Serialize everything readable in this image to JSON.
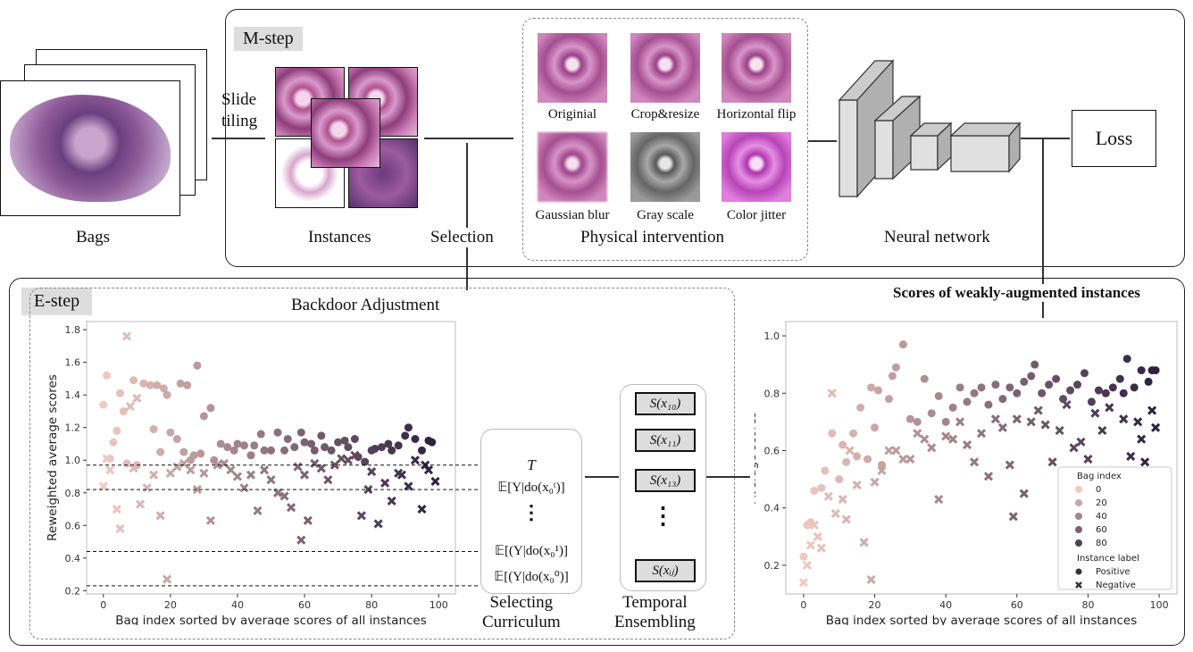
{
  "labels": {
    "bags": "Bags",
    "slide_tiling": "Slide\ntiling",
    "instances": "Instances",
    "selection": "Selection",
    "physical_intervention": "Physical intervention",
    "neural_network": "Neural network",
    "loss": "Loss",
    "m_step": "M-step",
    "e_step": "E-step",
    "backdoor": "Backdoor Adjustment",
    "scores_weak": "Scores of weakly-augmented instances",
    "selecting_curriculum": "Selecting\nCurriculum",
    "temporal_ensembling": "Temporal\nEnsembling"
  },
  "augmentations": [
    "Originial",
    "Crop&resize",
    "Horizontal flip",
    "Gaussian blur",
    "Gray scale",
    "Color jitter"
  ],
  "curriculum": {
    "t": "T",
    "e_t": "𝔼[Y|do(x₀ᵗ)]",
    "dots": "⋮",
    "e_1": "𝔼[(Y|do(x₀¹)]",
    "e_0": "𝔼[(Y|do(x₀⁰)]"
  },
  "ensemble": [
    "S(x₁₀)",
    "S(x₁₁)",
    "S(x₁₃)",
    "⋮",
    "S(xᵢⱼ)"
  ],
  "colors": {
    "bag_low": "#f0c9c0",
    "bag_high": "#2d1e3e"
  },
  "chart_data": [
    {
      "type": "scatter",
      "xlabel": "Bag index sorted by average scores of all instances",
      "ylabel": "Reweighted average scores",
      "xlim": [
        -5,
        105
      ],
      "ylim": [
        0.18,
        1.85
      ],
      "xticks": [
        0,
        20,
        40,
        60,
        80,
        100
      ],
      "yticks": [
        0.2,
        0.4,
        0.6,
        0.8,
        1.0,
        1.2,
        1.4,
        1.6,
        1.8
      ],
      "thresholds": [
        0.97,
        0.82,
        0.44,
        0.23
      ],
      "series": [
        {
          "name": "Positive",
          "marker": "circle",
          "points": [
            [
              0,
              1.34
            ],
            [
              1,
              1.52
            ],
            [
              2,
              1.01
            ],
            [
              3,
              1.11
            ],
            [
              4,
              1.18
            ],
            [
              5,
              1.41
            ],
            [
              6,
              1.3
            ],
            [
              7,
              0.98
            ],
            [
              9,
              1.49
            ],
            [
              10,
              0.97
            ],
            [
              12,
              1.47
            ],
            [
              14,
              1.46
            ],
            [
              15,
              1.19
            ],
            [
              16,
              1.46
            ],
            [
              17,
              1.05
            ],
            [
              18,
              1.44
            ],
            [
              19,
              1.4
            ],
            [
              20,
              1.17
            ],
            [
              22,
              1.13
            ],
            [
              23,
              1.47
            ],
            [
              24,
              1.05
            ],
            [
              25,
              1.46
            ],
            [
              26,
              1.0
            ],
            [
              27,
              1.03
            ],
            [
              28,
              1.58
            ],
            [
              29,
              1.04
            ],
            [
              30,
              1.27
            ],
            [
              32,
              1.32
            ],
            [
              33,
              1.0
            ],
            [
              35,
              1.1
            ],
            [
              37,
              1.08
            ],
            [
              39,
              1.06
            ],
            [
              40,
              1.1
            ],
            [
              42,
              1.09
            ],
            [
              44,
              1.03
            ],
            [
              45,
              1.09
            ],
            [
              47,
              1.16
            ],
            [
              48,
              1.06
            ],
            [
              50,
              1.06
            ],
            [
              52,
              1.17
            ],
            [
              54,
              1.06
            ],
            [
              55,
              1.13
            ],
            [
              57,
              1.08
            ],
            [
              59,
              1.17
            ],
            [
              60,
              1.11
            ],
            [
              62,
              1.1
            ],
            [
              63,
              1.06
            ],
            [
              65,
              1.15
            ],
            [
              66,
              1.08
            ],
            [
              68,
              1.06
            ],
            [
              70,
              1.11
            ],
            [
              72,
              1.12
            ],
            [
              73,
              1.08
            ],
            [
              75,
              1.13
            ],
            [
              76,
              1.02
            ],
            [
              78,
              0.99
            ],
            [
              80,
              1.06
            ],
            [
              81,
              1.07
            ],
            [
              83,
              1.08
            ],
            [
              85,
              1.1
            ],
            [
              86,
              1.06
            ],
            [
              88,
              1.09
            ],
            [
              90,
              1.15
            ],
            [
              91,
              1.2
            ],
            [
              93,
              1.13
            ],
            [
              95,
              1.06
            ],
            [
              97,
              1.12
            ],
            [
              98,
              1.11
            ]
          ]
        },
        {
          "name": "Negative",
          "marker": "x",
          "points": [
            [
              0,
              0.84
            ],
            [
              1,
              1.01
            ],
            [
              2,
              0.94
            ],
            [
              4,
              0.7
            ],
            [
              5,
              0.58
            ],
            [
              7,
              1.76
            ],
            [
              8,
              1.33
            ],
            [
              9,
              0.95
            ],
            [
              10,
              1.38
            ],
            [
              11,
              0.73
            ],
            [
              13,
              0.83
            ],
            [
              15,
              0.91
            ],
            [
              17,
              0.66
            ],
            [
              19,
              0.27
            ],
            [
              20,
              0.92
            ],
            [
              22,
              0.96
            ],
            [
              24,
              0.98
            ],
            [
              26,
              0.94
            ],
            [
              28,
              0.82
            ],
            [
              30,
              0.92
            ],
            [
              32,
              0.63
            ],
            [
              34,
              0.97
            ],
            [
              36,
              0.98
            ],
            [
              38,
              0.94
            ],
            [
              40,
              0.9
            ],
            [
              42,
              0.83
            ],
            [
              44,
              0.91
            ],
            [
              46,
              0.69
            ],
            [
              48,
              0.94
            ],
            [
              50,
              0.88
            ],
            [
              52,
              0.8
            ],
            [
              54,
              0.78
            ],
            [
              56,
              0.71
            ],
            [
              58,
              0.96
            ],
            [
              59,
              0.51
            ],
            [
              60,
              0.91
            ],
            [
              61,
              0.63
            ],
            [
              63,
              0.98
            ],
            [
              65,
              0.95
            ],
            [
              67,
              0.88
            ],
            [
              69,
              0.97
            ],
            [
              71,
              1.01
            ],
            [
              73,
              1.0
            ],
            [
              75,
              1.03
            ],
            [
              77,
              0.66
            ],
            [
              79,
              0.82
            ],
            [
              80,
              0.93
            ],
            [
              82,
              0.61
            ],
            [
              84,
              0.86
            ],
            [
              86,
              0.75
            ],
            [
              88,
              0.92
            ],
            [
              89,
              0.91
            ],
            [
              91,
              0.84
            ],
            [
              93,
              1.0
            ],
            [
              95,
              0.7
            ],
            [
              96,
              0.97
            ],
            [
              97,
              0.94
            ],
            [
              99,
              0.87
            ]
          ]
        }
      ]
    },
    {
      "type": "scatter",
      "xlabel": "Bag index sorted by average scores of all instances",
      "ylabel": "Average scores",
      "xlim": [
        -5,
        105
      ],
      "ylim": [
        0.1,
        1.05
      ],
      "xticks": [
        0,
        20,
        40,
        60,
        80,
        100
      ],
      "yticks": [
        0.2,
        0.4,
        0.6,
        0.8,
        1.0
      ],
      "legend": {
        "position": "bottom-right",
        "hue_title": "Bag index",
        "hue_levels": [
          "0",
          "20",
          "40",
          "60",
          "80"
        ],
        "style_title": "Instance label",
        "style_levels": [
          "Positive",
          "Negative"
        ]
      },
      "series": [
        {
          "name": "Positive",
          "marker": "circle",
          "points": [
            [
              0,
              0.23
            ],
            [
              1,
              0.34
            ],
            [
              2,
              0.35
            ],
            [
              3,
              0.46
            ],
            [
              5,
              0.47
            ],
            [
              6,
              0.53
            ],
            [
              8,
              0.66
            ],
            [
              10,
              0.5
            ],
            [
              11,
              0.62
            ],
            [
              12,
              0.56
            ],
            [
              14,
              0.66
            ],
            [
              15,
              0.58
            ],
            [
              16,
              0.75
            ],
            [
              18,
              0.57
            ],
            [
              19,
              0.82
            ],
            [
              20,
              0.68
            ],
            [
              21,
              0.81
            ],
            [
              22,
              0.55
            ],
            [
              24,
              0.78
            ],
            [
              25,
              0.86
            ],
            [
              26,
              0.89
            ],
            [
              28,
              0.97
            ],
            [
              30,
              0.71
            ],
            [
              32,
              0.7
            ],
            [
              34,
              0.85
            ],
            [
              36,
              0.73
            ],
            [
              38,
              0.79
            ],
            [
              40,
              0.7
            ],
            [
              42,
              0.75
            ],
            [
              44,
              0.82
            ],
            [
              46,
              0.77
            ],
            [
              48,
              0.8
            ],
            [
              50,
              0.82
            ],
            [
              52,
              0.76
            ],
            [
              54,
              0.83
            ],
            [
              56,
              0.78
            ],
            [
              58,
              0.82
            ],
            [
              60,
              0.8
            ],
            [
              62,
              0.84
            ],
            [
              64,
              0.86
            ],
            [
              65,
              0.9
            ],
            [
              67,
              0.8
            ],
            [
              69,
              0.83
            ],
            [
              71,
              0.85
            ],
            [
              73,
              0.78
            ],
            [
              75,
              0.81
            ],
            [
              77,
              0.83
            ],
            [
              79,
              0.87
            ],
            [
              81,
              0.77
            ],
            [
              83,
              0.81
            ],
            [
              85,
              0.8
            ],
            [
              87,
              0.82
            ],
            [
              89,
              0.85
            ],
            [
              90,
              0.8
            ],
            [
              91,
              0.92
            ],
            [
              93,
              0.82
            ],
            [
              95,
              0.88
            ],
            [
              97,
              0.84
            ],
            [
              98,
              0.88
            ],
            [
              99,
              0.88
            ]
          ]
        },
        {
          "name": "Negative",
          "marker": "x",
          "points": [
            [
              0,
              0.14
            ],
            [
              1,
              0.2
            ],
            [
              2,
              0.27
            ],
            [
              3,
              0.34
            ],
            [
              4,
              0.3
            ],
            [
              5,
              0.26
            ],
            [
              7,
              0.44
            ],
            [
              8,
              0.8
            ],
            [
              9,
              0.38
            ],
            [
              11,
              0.43
            ],
            [
              12,
              0.36
            ],
            [
              13,
              0.6
            ],
            [
              15,
              0.48
            ],
            [
              17,
              0.28
            ],
            [
              19,
              0.15
            ],
            [
              20,
              0.49
            ],
            [
              22,
              0.53
            ],
            [
              24,
              0.6
            ],
            [
              26,
              0.6
            ],
            [
              28,
              0.57
            ],
            [
              30,
              0.57
            ],
            [
              32,
              0.66
            ],
            [
              34,
              0.64
            ],
            [
              36,
              0.61
            ],
            [
              38,
              0.43
            ],
            [
              40,
              0.65
            ],
            [
              42,
              0.64
            ],
            [
              44,
              0.7
            ],
            [
              46,
              0.62
            ],
            [
              48,
              0.56
            ],
            [
              50,
              0.66
            ],
            [
              52,
              0.51
            ],
            [
              54,
              0.71
            ],
            [
              56,
              0.68
            ],
            [
              58,
              0.55
            ],
            [
              59,
              0.37
            ],
            [
              60,
              0.71
            ],
            [
              62,
              0.45
            ],
            [
              64,
              0.7
            ],
            [
              66,
              0.74
            ],
            [
              68,
              0.69
            ],
            [
              70,
              0.56
            ],
            [
              72,
              0.67
            ],
            [
              74,
              0.76
            ],
            [
              76,
              0.61
            ],
            [
              78,
              0.63
            ],
            [
              80,
              0.57
            ],
            [
              82,
              0.73
            ],
            [
              84,
              0.67
            ],
            [
              86,
              0.75
            ],
            [
              88,
              0.52
            ],
            [
              90,
              0.71
            ],
            [
              92,
              0.58
            ],
            [
              94,
              0.7
            ],
            [
              95,
              0.64
            ],
            [
              96,
              0.56
            ],
            [
              98,
              0.74
            ],
            [
              99,
              0.68
            ]
          ]
        }
      ]
    }
  ]
}
